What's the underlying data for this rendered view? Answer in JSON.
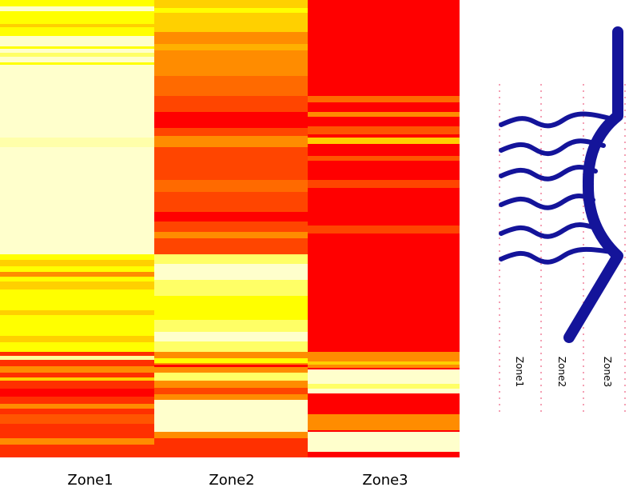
{
  "heatmap": {
    "columns": [
      "Zone1",
      "Zone2",
      "Zone3"
    ]
  },
  "diagram": {
    "labels": [
      "Zone1",
      "Zone2",
      "Zone3"
    ]
  }
}
